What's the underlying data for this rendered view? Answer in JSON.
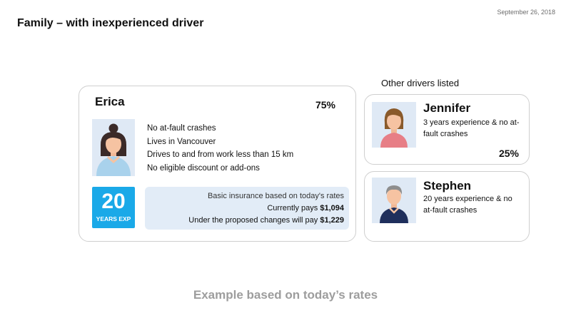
{
  "date": "September 26, 2018",
  "title": "Family – with inexperienced driver",
  "main_driver": {
    "name": "Erica",
    "share": "75%",
    "details": [
      "No at-fault crashes",
      "Lives in Vancouver",
      "Drives to and from work less than 15 km",
      "No eligible discount or add-ons"
    ],
    "experience_years": "20",
    "experience_label": "YEARS EXP",
    "rates_heading": "Basic insurance based on today's rates",
    "current_label": "Currently pays ",
    "current_amount": "$1,094",
    "proposed_label": "Under the proposed changes will pay ",
    "proposed_amount": "$1,229"
  },
  "other_drivers_label": "Other drivers listed",
  "other_drivers": [
    {
      "name": "Jennifer",
      "description": "3 years experience & no at-fault crashes",
      "share": "25%"
    },
    {
      "name": "Stephen",
      "description": "20 years experience & no at-fault crashes"
    }
  ],
  "footer": "Example based on today’s rates",
  "colors": {
    "badge": "#1aa9e8",
    "rates_bg": "#e2ecf7",
    "avatar_bg": "#dfe9f5",
    "footer_text": "#9d9d9d"
  },
  "icons": {
    "erica": "woman-avatar-icon",
    "jennifer": "girl-avatar-icon",
    "stephen": "man-avatar-icon"
  }
}
